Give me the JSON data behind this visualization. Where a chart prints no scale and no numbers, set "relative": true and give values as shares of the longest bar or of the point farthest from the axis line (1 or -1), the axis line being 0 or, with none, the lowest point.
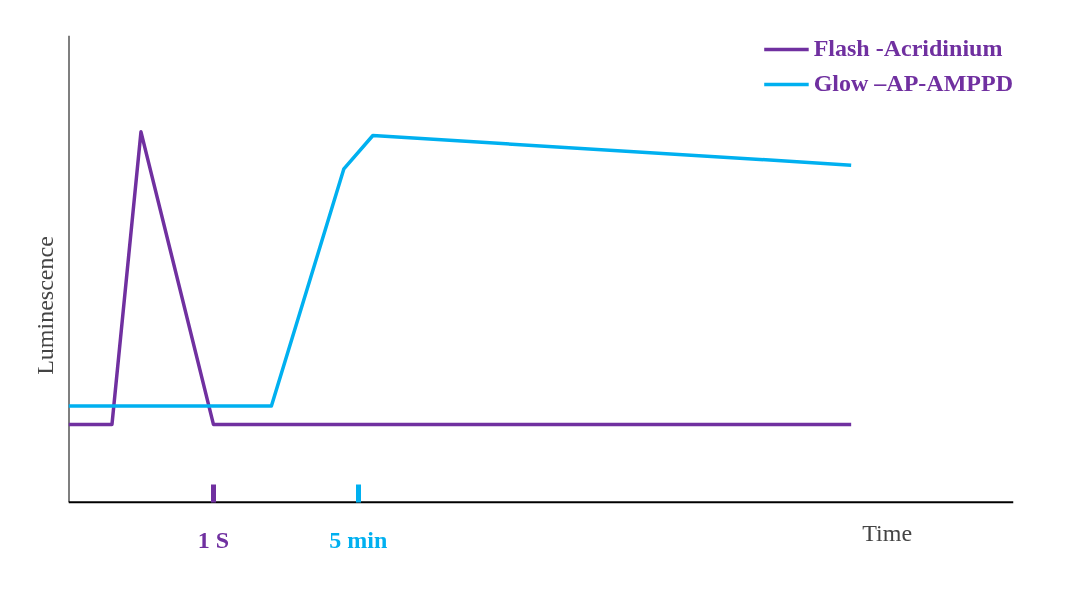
{
  "chart_data": {
    "type": "line",
    "relative": true,
    "xlabel": "Time",
    "ylabel": "Luminescence",
    "categories": [
      null,
      null,
      null,
      null,
      null,
      null,
      null,
      null,
      null,
      null,
      "1 S",
      null,
      null,
      null,
      null,
      null,
      null,
      null,
      null,
      null,
      "5 min",
      null,
      null,
      null,
      null,
      null,
      null,
      null,
      null,
      null,
      null,
      null,
      null,
      null,
      null,
      null,
      null,
      null,
      null,
      null,
      null,
      null,
      null,
      null,
      null,
      null,
      null,
      null,
      null,
      null,
      null,
      null,
      null,
      null,
      null
    ],
    "series": [
      {
        "name": "Flash -Acridinium",
        "color": "#7030a0",
        "values": [
          0.21,
          null,
          null,
          0.21,
          null,
          1,
          null,
          null,
          null,
          null,
          0.21,
          null,
          null,
          null,
          null,
          null,
          null,
          null,
          null,
          null,
          null,
          null,
          null,
          null,
          null,
          null,
          null,
          null,
          null,
          null,
          null,
          null,
          null,
          null,
          null,
          null,
          null,
          null,
          null,
          null,
          null,
          null,
          null,
          null,
          null,
          null,
          null,
          null,
          null,
          null,
          null,
          null,
          null,
          null,
          0.21
        ]
      },
      {
        "name": "Glow –AP-AMPPD",
        "color": "#00b0f0",
        "values": [
          0.26,
          null,
          null,
          null,
          null,
          null,
          null,
          null,
          null,
          null,
          null,
          null,
          null,
          null,
          0.26,
          null,
          null,
          null,
          null,
          0.9,
          null,
          0.99,
          null,
          null,
          null,
          null,
          null,
          null,
          null,
          null,
          null,
          null,
          null,
          null,
          null,
          null,
          null,
          null,
          null,
          null,
          null,
          null,
          null,
          null,
          null,
          null,
          null,
          null,
          null,
          null,
          null,
          null,
          null,
          null,
          0.91
        ]
      }
    ],
    "legend": "top right",
    "grid": false,
    "line_style": "solid",
    "marker": "none"
  }
}
